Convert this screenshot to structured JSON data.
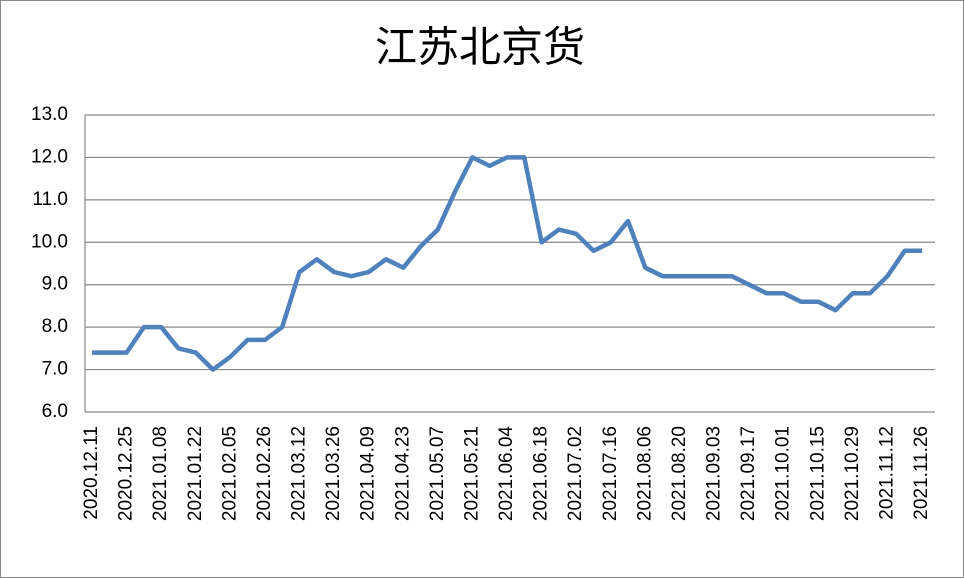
{
  "chart_data": {
    "type": "line",
    "title": "江苏北京货",
    "categories": [
      "2020.12.11",
      null,
      "2020.12.25",
      null,
      "2021.01.08",
      null,
      "2021.01.22",
      null,
      "2021.02.05",
      null,
      "2021.02.26",
      null,
      "2021.03.12",
      null,
      "2021.03.26",
      null,
      "2021.04.09",
      null,
      "2021.04.23",
      null,
      "2021.05.07",
      null,
      "2021.05.21",
      null,
      "2021.06.04",
      null,
      "2021.06.18",
      null,
      "2021.07.02",
      null,
      "2021.07.16",
      null,
      "2021.08.06",
      null,
      "2021.08.20",
      null,
      "2021.09.03",
      null,
      "2021.09.17",
      null,
      "2021.10.01",
      null,
      "2021.10.15",
      null,
      "2021.10.29",
      null,
      "2021.11.12",
      null,
      "2021.11.26"
    ],
    "values": [
      7.4,
      7.4,
      7.4,
      8.0,
      8.0,
      7.5,
      7.4,
      7.0,
      7.3,
      7.7,
      7.7,
      8.0,
      9.3,
      9.6,
      9.3,
      9.2,
      9.3,
      9.6,
      9.4,
      9.9,
      10.3,
      11.2,
      12.0,
      11.8,
      12.0,
      12.0,
      10.0,
      10.3,
      10.2,
      9.8,
      10.0,
      10.5,
      9.4,
      9.2,
      9.2,
      9.2,
      9.2,
      9.2,
      9.0,
      8.8,
      8.8,
      8.6,
      8.6,
      8.4,
      8.8,
      8.8,
      9.2,
      9.8,
      9.8
    ],
    "color": "#4f81bd",
    "ylim": [
      6.0,
      13.0
    ],
    "yticks": [
      {
        "value": 6,
        "label": "6.0"
      },
      {
        "value": 7,
        "label": "7.0"
      },
      {
        "value": 8,
        "label": "8.0"
      },
      {
        "value": 9,
        "label": "9.0"
      },
      {
        "value": 10,
        "label": "10.0"
      },
      {
        "value": 11,
        "label": "11.0"
      },
      {
        "value": 12,
        "label": "12.0"
      },
      {
        "value": 13,
        "label": "13.0"
      }
    ],
    "grid": true
  }
}
